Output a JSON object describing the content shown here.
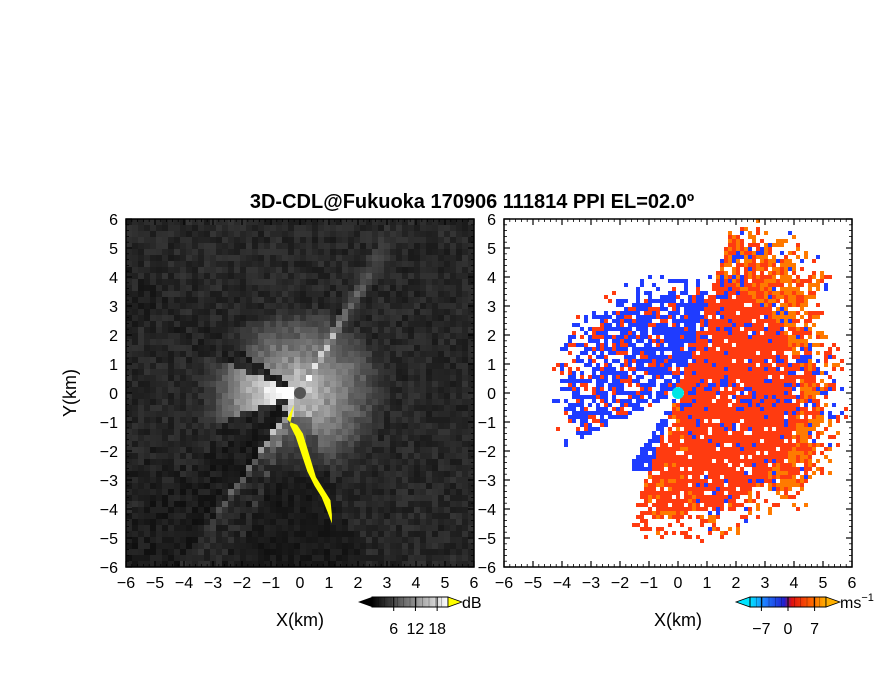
{
  "title": "3D-CDL@Fukuoka 170906 111814 PPI EL=02.0º",
  "colors": {
    "highlight": "#ffff00",
    "receding_red": "#ff3b10",
    "receding_orange": "#ff7a00",
    "approaching_blue": "#1f3cff",
    "radar_marker_left": "#555555",
    "radar_marker_right": "#00e5e5"
  },
  "chart_data": [
    {
      "type": "heatmap",
      "name": "intensity",
      "xlabel": "X(km)",
      "ylabel": "Y(km)",
      "xlim": [
        -6,
        6
      ],
      "ylim": [
        -6,
        6
      ],
      "xticks": [
        -6,
        -5,
        -4,
        -3,
        -2,
        -1,
        0,
        1,
        2,
        3,
        4,
        5,
        6
      ],
      "yticks": [
        -6,
        -5,
        -4,
        -3,
        -2,
        -1,
        0,
        1,
        2,
        3,
        4,
        5,
        6
      ],
      "xtick_labels": [
        "−6",
        "−5",
        "−4",
        "−3",
        "−2",
        "−1",
        "0",
        "1",
        "2",
        "3",
        "4",
        "5",
        "6"
      ],
      "ytick_labels": [
        "−6",
        "−5",
        "−4",
        "−3",
        "−2",
        "−1",
        "0",
        "1",
        "2",
        "3",
        "4",
        "5",
        "6"
      ],
      "colorbar": {
        "unit": "dB",
        "ticks": [
          6,
          12,
          18
        ],
        "tick_labels": [
          "6",
          "12",
          "18"
        ],
        "range": [
          0,
          21
        ],
        "colormap": "grayscale"
      },
      "radar_position": [
        0,
        0
      ]
    },
    {
      "type": "heatmap",
      "name": "doppler_velocity",
      "xlabel": "X(km)",
      "xlim": [
        -6,
        6
      ],
      "ylim": [
        -6,
        6
      ],
      "xticks": [
        -6,
        -5,
        -4,
        -3,
        -2,
        -1,
        0,
        1,
        2,
        3,
        4,
        5,
        6
      ],
      "yticks": [
        -6,
        -5,
        -4,
        -3,
        -2,
        -1,
        0,
        1,
        2,
        3,
        4,
        5,
        6
      ],
      "xtick_labels": [
        "−6",
        "−5",
        "−4",
        "−3",
        "−2",
        "−1",
        "0",
        "1",
        "2",
        "3",
        "4",
        "5",
        "6"
      ],
      "ytick_labels": [
        "−6",
        "−5",
        "−4",
        "−3",
        "−2",
        "−1",
        "0",
        "1",
        "2",
        "3",
        "4",
        "5",
        "6"
      ],
      "colorbar": {
        "unit": "ms",
        "unit_exponent": "−1",
        "ticks": [
          -7,
          0,
          7
        ],
        "tick_labels": [
          "−7",
          "0",
          "7"
        ],
        "range": [
          -10,
          10
        ],
        "colormap": "cyan-blue-red-orange"
      },
      "radar_position": [
        0,
        0
      ]
    }
  ]
}
